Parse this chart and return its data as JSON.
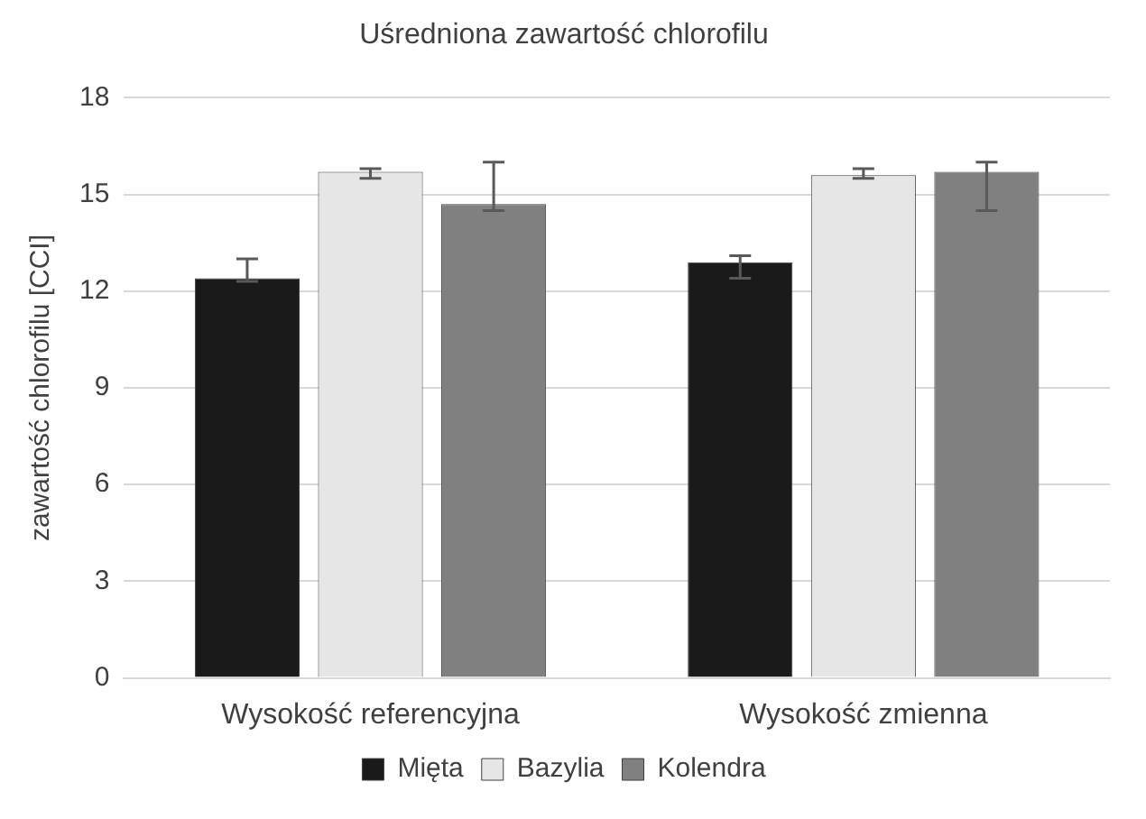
{
  "chart_data": {
    "type": "bar",
    "title": "Uśredniona zawartość chlorofilu",
    "ylabel": "zawartość chlorofilu [CCI]",
    "categories": [
      "Wysokość referencyjna",
      "Wysokość zmienna"
    ],
    "series": [
      {
        "name": "Mięta",
        "color": "#1a1a1a",
        "values": [
          12.4,
          12.9
        ],
        "errors": [
          [
            12.3,
            13.0
          ],
          [
            12.4,
            13.1
          ]
        ]
      },
      {
        "name": "Bazylia",
        "color": "#e6e6e6",
        "values": [
          15.7,
          15.6
        ],
        "errors": [
          [
            15.5,
            15.8
          ],
          [
            15.5,
            15.8
          ]
        ]
      },
      {
        "name": "Kolendra",
        "color": "#808080",
        "values": [
          14.7,
          15.7
        ],
        "errors": [
          [
            14.5,
            16.0
          ],
          [
            14.5,
            16.0
          ]
        ]
      }
    ],
    "ylim": [
      0,
      18
    ],
    "yticks": [
      0,
      3,
      6,
      9,
      12,
      15,
      18
    ],
    "grid": "y",
    "legend": "bottom"
  }
}
